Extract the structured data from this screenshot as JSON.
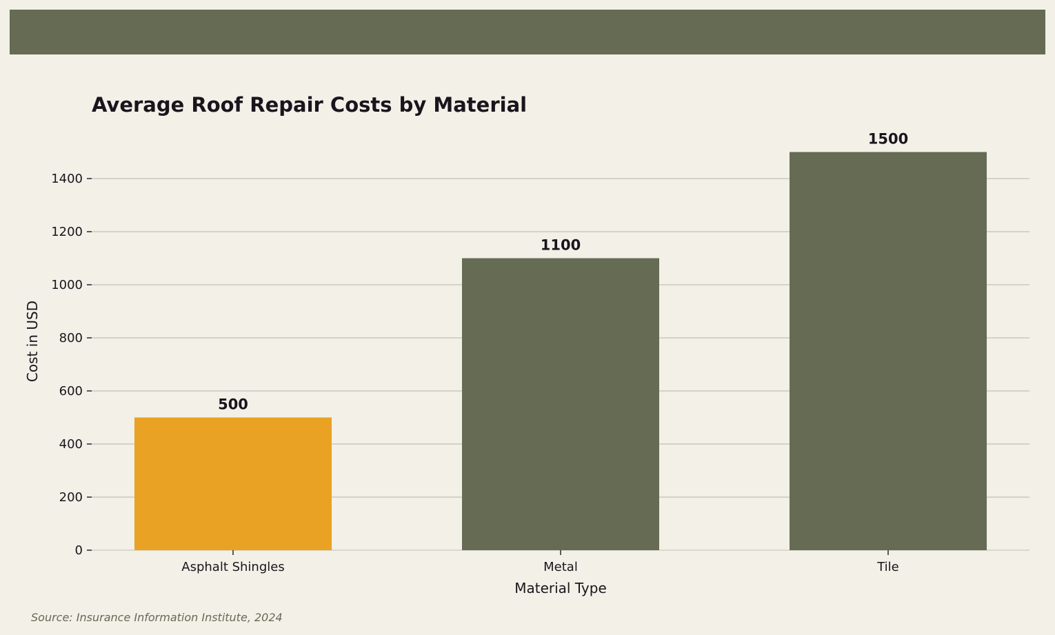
{
  "colors": {
    "background": "#f2f0e7",
    "band": "#666b53",
    "highlight": "#e9a224",
    "bar": "#666b53",
    "grid": "#cbc9bc",
    "text": "#1b141d",
    "source_text": "#666a55"
  },
  "chart_data": {
    "type": "bar",
    "title": "Average Roof Repair Costs by Material",
    "xlabel": "Material Type",
    "ylabel": "Cost in USD",
    "categories": [
      "Asphalt Shingles",
      "Metal",
      "Tile"
    ],
    "values": [
      500,
      1100,
      1500
    ],
    "value_labels": [
      "500",
      "1100",
      "1500"
    ],
    "highlighted_category": "Asphalt Shingles",
    "ylim": [
      0,
      1500
    ],
    "yticks": [
      0,
      200,
      400,
      600,
      800,
      1000,
      1200,
      1400
    ],
    "grid": "horizontal",
    "legend": "none"
  },
  "source": "Source: Insurance Information Institute, 2024"
}
